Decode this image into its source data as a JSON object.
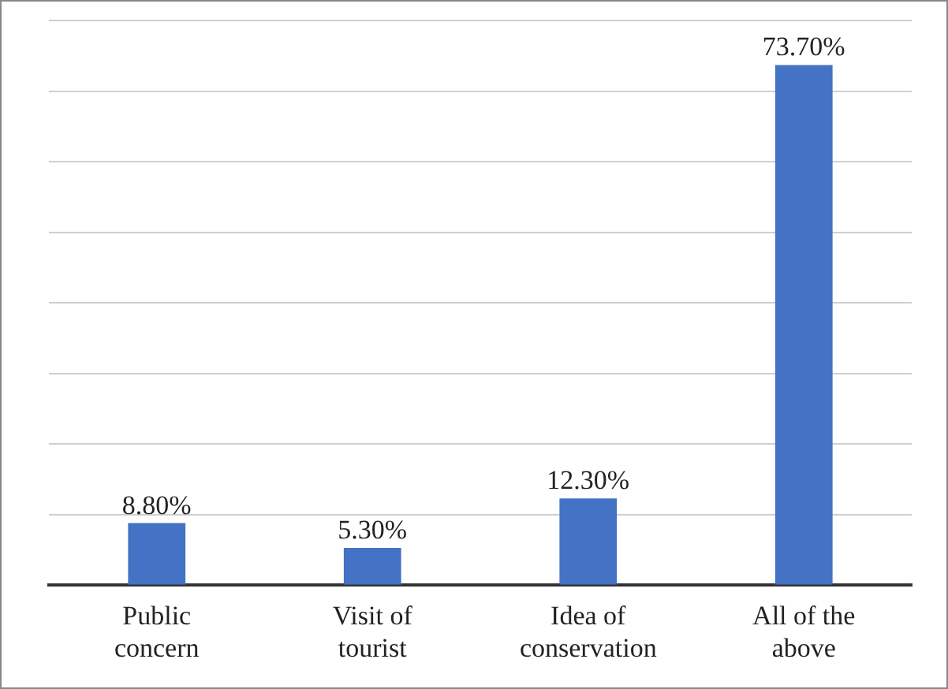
{
  "chart_data": {
    "type": "bar",
    "categories": [
      "Public concern",
      "Visit of tourist",
      "Idea of conservation",
      "All of the above"
    ],
    "values": [
      8.8,
      5.3,
      12.3,
      73.7
    ],
    "color": "#4472c4",
    "value_labels": [
      "8.80%",
      "5.30%",
      "12.30%",
      "73.70%"
    ],
    "ylim": [
      0,
      80
    ],
    "yticks": [
      {
        "value": 0,
        "label": null
      },
      {
        "value": 10,
        "label": null
      },
      {
        "value": 20,
        "label": null
      },
      {
        "value": 30,
        "label": null
      },
      {
        "value": 40,
        "label": null
      },
      {
        "value": 50,
        "label": null
      },
      {
        "value": 60,
        "label": null
      },
      {
        "value": 70,
        "label": null
      },
      {
        "value": 80,
        "label": null
      }
    ],
    "tick_labels": "x",
    "grid": "y",
    "legend": false
  }
}
